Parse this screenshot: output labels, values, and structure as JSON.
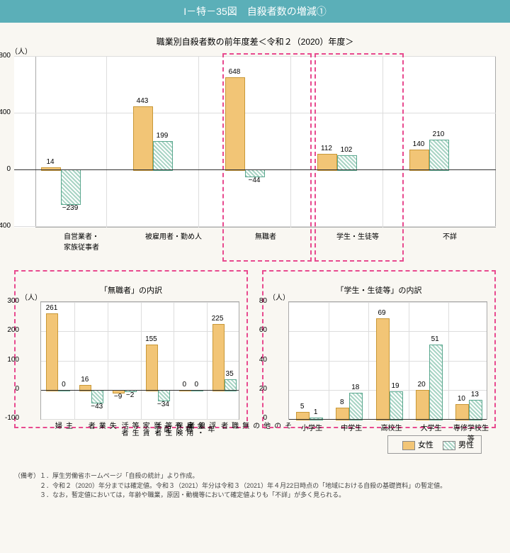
{
  "title": "I－特－35図　自殺者数の増減①",
  "subtitle": "職業別自殺者数の前年度差＜令和２（2020）年度＞",
  "unit": "（人）",
  "legend": {
    "female": "女性",
    "male": "男性"
  },
  "main_chart": {
    "type": "bar",
    "ylim": [
      -400,
      800
    ],
    "yticks": [
      -400,
      0,
      400,
      800
    ],
    "categories": [
      "自営業者・\n家族従事者",
      "被雇用者・勤め人",
      "無職者",
      "学生・生徒等",
      "不詳"
    ],
    "female": [
      14,
      443,
      648,
      112,
      140
    ],
    "male": [
      -239,
      199,
      -44,
      102,
      210
    ],
    "highlight_indices": [
      2,
      3
    ],
    "colors": {
      "female": "#f2c576",
      "male_pattern": "#a8d4c4",
      "border": "#aaaaaa",
      "grid": "#dddddd"
    }
  },
  "sub1": {
    "title": "「無職者」の内訳",
    "ylim": [
      -100,
      300
    ],
    "yticks": [
      -100,
      0,
      100,
      200,
      300
    ],
    "categories": [
      "主婦",
      "失業者",
      "利子・配当・家賃等生活者",
      "年金・雇用保険等生活者",
      "浮浪者",
      "その他の無職者"
    ],
    "female": [
      261,
      16,
      -9,
      155,
      0,
      225
    ],
    "male": [
      0,
      -43,
      -2,
      -34,
      0,
      35
    ]
  },
  "sub2": {
    "title": "「学生・生徒等」の内訳",
    "ylim": [
      0,
      80
    ],
    "yticks": [
      0,
      20,
      40,
      60,
      80
    ],
    "categories": [
      "小学生",
      "中学生",
      "高校生",
      "大学生",
      "専修学校生等"
    ],
    "female": [
      5,
      8,
      69,
      20,
      10
    ],
    "male": [
      1,
      18,
      19,
      51,
      13
    ]
  },
  "notes": [
    "（備考）１．厚生労働省ホームページ「自殺の統計」より作成。",
    "　　　　２．令和２（2020）年分までは確定値。令和３（2021）年分は令和３（2021）年４月22日時点の「地域における自殺の基礎資料」の暫定値。",
    "　　　　３．なお，暫定値においては，年齢や職業，原因・動機等において確定値よりも「不詳」が多く見られる。"
  ]
}
